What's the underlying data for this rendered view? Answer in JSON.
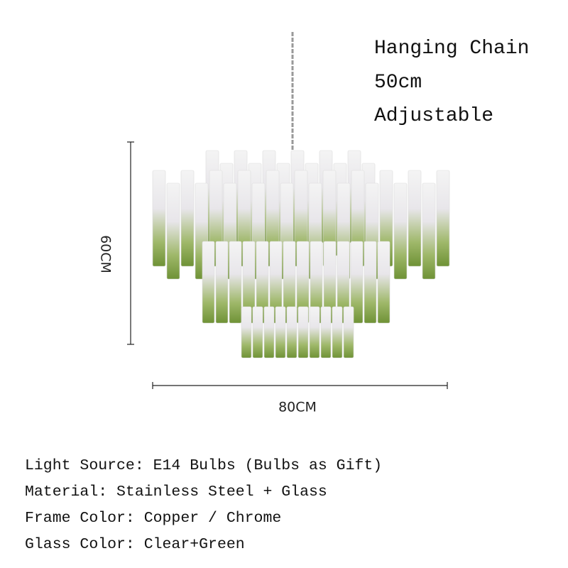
{
  "chain_note": {
    "lines": [
      "Hanging Chain",
      "50cm",
      "Adjustable"
    ]
  },
  "dimensions": {
    "height": "60CM",
    "width": "80CM"
  },
  "specs": [
    "Light Source: E14 Bulbs (Bulbs as Gift)",
    "Material: Stainless Steel + Glass",
    "Frame Color: Copper / Chrome",
    "Glass Color: Clear+Green"
  ]
}
